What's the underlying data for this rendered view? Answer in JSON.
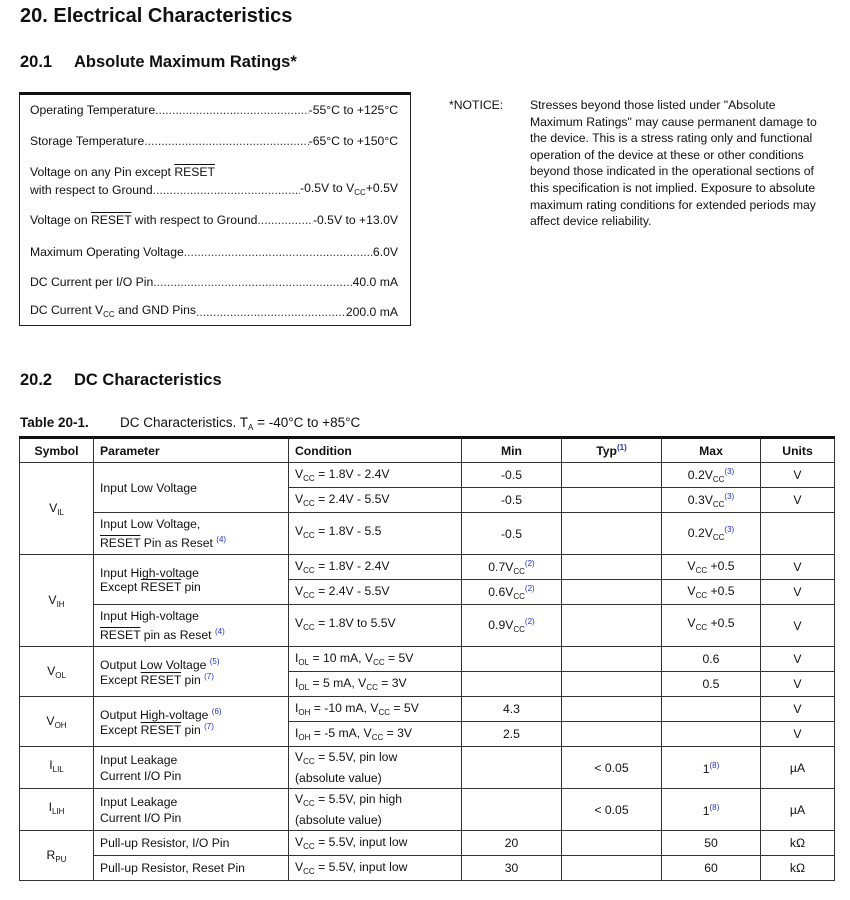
{
  "title": "20. Electrical Characteristics",
  "section1": {
    "num": "20.1",
    "title": "Absolute Maximum Ratings*"
  },
  "ratings": [
    {
      "label": "Operating Temperature",
      "value": "-55°C to +125°C"
    },
    {
      "label": "Storage Temperature",
      "value": "-65°C to +150°C"
    },
    {
      "label_line1": "Voltage on any Pin except ~{RESET}",
      "label": "with respect to Ground",
      "value": "-0.5V to V_{CC}+0.5V"
    },
    {
      "label": "Voltage on ~{RESET} with respect to Ground",
      "value": "-0.5V to +13.0V"
    },
    {
      "label": "Maximum Operating Voltage",
      "value": "6.0V"
    },
    {
      "label": "DC Current per I/O Pin",
      "value": "40.0 mA"
    },
    {
      "label": "DC Current V_{CC} and GND Pins",
      "value": "200.0 mA"
    }
  ],
  "notice": {
    "label": "*NOTICE:",
    "text": "Stresses beyond those listed under \"Absolute Maximum Ratings\" may cause permanent damage to the device. This is a stress rating only and functional operation of the device at these or other conditions beyond those indicated in the operational sections of this specification is not implied. Exposure to absolute maximum rating conditions for extended periods may affect device reliability."
  },
  "section2": {
    "num": "20.2",
    "title": "DC Characteristics"
  },
  "table": {
    "caption_num": "Table 20-1.",
    "caption": "DC Characteristics. T_{A} = -40°C to +85°C",
    "headers": [
      "Symbol",
      "Parameter",
      "Condition",
      "Min",
      "Typ^{(1)}",
      "Max",
      "Units"
    ],
    "rows": [
      {
        "symbol": "V_{IL}",
        "param": "Input Low Voltage",
        "cond": "V_{CC} = 1.8V - 2.4V",
        "min": "-0.5",
        "typ": "",
        "max": "0.2V_{CC}^{(3)}",
        "units": "V"
      },
      {
        "cond": "V_{CC} = 2.4V - 5.5V",
        "min": "-0.5",
        "typ": "",
        "max": "0.3V_{CC}^{(3)}",
        "units": "V"
      },
      {
        "param": "Input Low Voltage,|~{RESET} Pin as Reset ^{(4)}",
        "cond": "V_{CC} = 1.8V - 5.5",
        "min": "-0.5",
        "typ": "",
        "max": "0.2V_{CC}^{(3)}",
        "units": ""
      },
      {
        "symbol": "V_{IH}",
        "param": "Input High-voltage|Except ~{RESET} pin",
        "cond": "V_{CC} = 1.8V - 2.4V",
        "min": "0.7V_{CC}^{(2)}",
        "typ": "",
        "max": "V_{CC} +0.5",
        "units": "V"
      },
      {
        "cond": "V_{CC} = 2.4V - 5.5V",
        "min": "0.6V_{CC}^{(2)}",
        "typ": "",
        "max": "V_{CC} +0.5",
        "units": "V"
      },
      {
        "param": "Input High-voltage|~{RESET} pin as Reset ^{(4)}",
        "cond": "V_{CC} = 1.8V to 5.5V",
        "min": "0.9V_{CC}^{(2)}",
        "typ": "",
        "max": "V_{CC} +0.5",
        "units": "V"
      },
      {
        "symbol": "V_{OL}",
        "param": "Output Low Voltage ^{(5)}|Except ~{RESET} pin ^{(7)}",
        "cond": "I_{OL} = 10 mA, V_{CC} = 5V",
        "min": "",
        "typ": "",
        "max": "0.6",
        "units": "V"
      },
      {
        "cond": "I_{OL} = 5 mA, V_{CC} = 3V",
        "min": "",
        "typ": "",
        "max": "0.5",
        "units": "V"
      },
      {
        "symbol": "V_{OH}",
        "param": "Output High-voltage ^{(6)}|Except ~{RESET} pin ^{(7)}",
        "cond": "I_{OH} = -10 mA, V_{CC} = 5V",
        "min": "4.3",
        "typ": "",
        "max": "",
        "units": "V"
      },
      {
        "cond": "I_{OH} = -5 mA, V_{CC} = 3V",
        "min": "2.5",
        "typ": "",
        "max": "",
        "units": "V"
      },
      {
        "symbol": "I_{LIL}",
        "param": "Input Leakage|Current I/O Pin",
        "cond": "V_{CC} = 5.5V, pin low|(absolute value)",
        "min": "",
        "typ": "< 0.05",
        "max": "1^{(8)}",
        "units": "µA"
      },
      {
        "symbol": "I_{LIH}",
        "param": "Input Leakage|Current I/O Pin",
        "cond": "V_{CC} = 5.5V, pin high|(absolute value)",
        "min": "",
        "typ": "< 0.05",
        "max": "1^{(8)}",
        "units": "µA"
      },
      {
        "symbol": "R_{PU}",
        "param": "Pull-up Resistor, I/O Pin",
        "cond": "V_{CC} = 5.5V, input low",
        "min": "20",
        "typ": "",
        "max": "50",
        "units": "kΩ"
      },
      {
        "param": "Pull-up Resistor, Reset Pin",
        "cond": "V_{CC} = 5.5V, input low",
        "min": "30",
        "typ": "",
        "max": "60",
        "units": "kΩ"
      }
    ]
  }
}
